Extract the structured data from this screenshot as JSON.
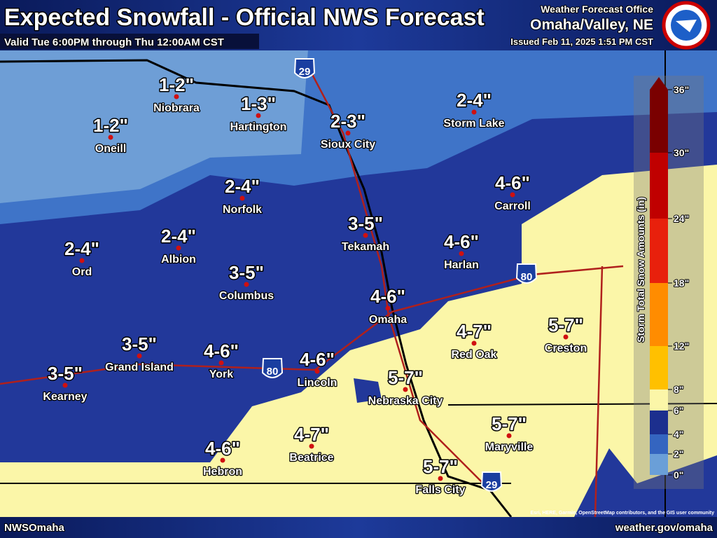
{
  "header": {
    "title": "Expected Snowfall - Official NWS Forecast",
    "subtitle": "Valid Tue 6:00PM through Thu 12:00AM CST",
    "office_label": "Weather Forecast Office",
    "office": "Omaha/Valley, NE",
    "issued": "Issued Feb 11, 2025 1:51 PM CST"
  },
  "cities": [
    {
      "name": "Niobrara",
      "amount": "1-2\""
    },
    {
      "name": "Oneill",
      "amount": "1-2\""
    },
    {
      "name": "Hartington",
      "amount": "1-3\""
    },
    {
      "name": "Sioux City",
      "amount": "2-3\""
    },
    {
      "name": "Storm Lake",
      "amount": "2-4\""
    },
    {
      "name": "Norfolk",
      "amount": "2-4\""
    },
    {
      "name": "Carroll",
      "amount": "4-6\""
    },
    {
      "name": "Albion",
      "amount": "2-4\""
    },
    {
      "name": "Tekamah",
      "amount": "3-5\""
    },
    {
      "name": "Ord",
      "amount": "2-4\""
    },
    {
      "name": "Harlan",
      "amount": "4-6\""
    },
    {
      "name": "Columbus",
      "amount": "3-5\""
    },
    {
      "name": "Omaha",
      "amount": "4-6\""
    },
    {
      "name": "Red Oak",
      "amount": "4-7\""
    },
    {
      "name": "Creston",
      "amount": "5-7\""
    },
    {
      "name": "Grand Island",
      "amount": "3-5\""
    },
    {
      "name": "York",
      "amount": "4-6\""
    },
    {
      "name": "Lincoln",
      "amount": "4-6\""
    },
    {
      "name": "Kearney",
      "amount": "3-5\""
    },
    {
      "name": "Nebraska City",
      "amount": "5-7\""
    },
    {
      "name": "Beatrice",
      "amount": "4-7\""
    },
    {
      "name": "Maryville",
      "amount": "5-7\""
    },
    {
      "name": "Hebron",
      "amount": "4-6\""
    },
    {
      "name": "Falls City",
      "amount": "5-7\""
    }
  ],
  "interstates": [
    "29",
    "80",
    "80",
    "29"
  ],
  "legend": {
    "title": "Storm Total Snow Amounts (in)",
    "ticks": [
      {
        "value": 36,
        "label": "36\""
      },
      {
        "value": 30,
        "label": "30\""
      },
      {
        "value": 24,
        "label": "24\""
      },
      {
        "value": 18,
        "label": "18\""
      },
      {
        "value": 12,
        "label": "12\""
      },
      {
        "value": 8,
        "label": "8\""
      },
      {
        "value": 6,
        "label": "6\""
      },
      {
        "value": 4,
        "label": "4\""
      },
      {
        "value": 2,
        "label": "2\""
      },
      {
        "value": 0,
        "label": "0\""
      }
    ],
    "colors": [
      "#7a0000",
      "#c00000",
      "#e8200c",
      "#ff8c00",
      "#ffc000",
      "#fbf6a8",
      "#1c2f8e",
      "#3465c0",
      "#6a9fd8"
    ]
  },
  "attribution": "Esri, HERE, Garmin, OpenStreetMap contributors, and the GIS user community",
  "footer": {
    "left": "NWSOmaha",
    "right": "weather.gov/omaha"
  }
}
